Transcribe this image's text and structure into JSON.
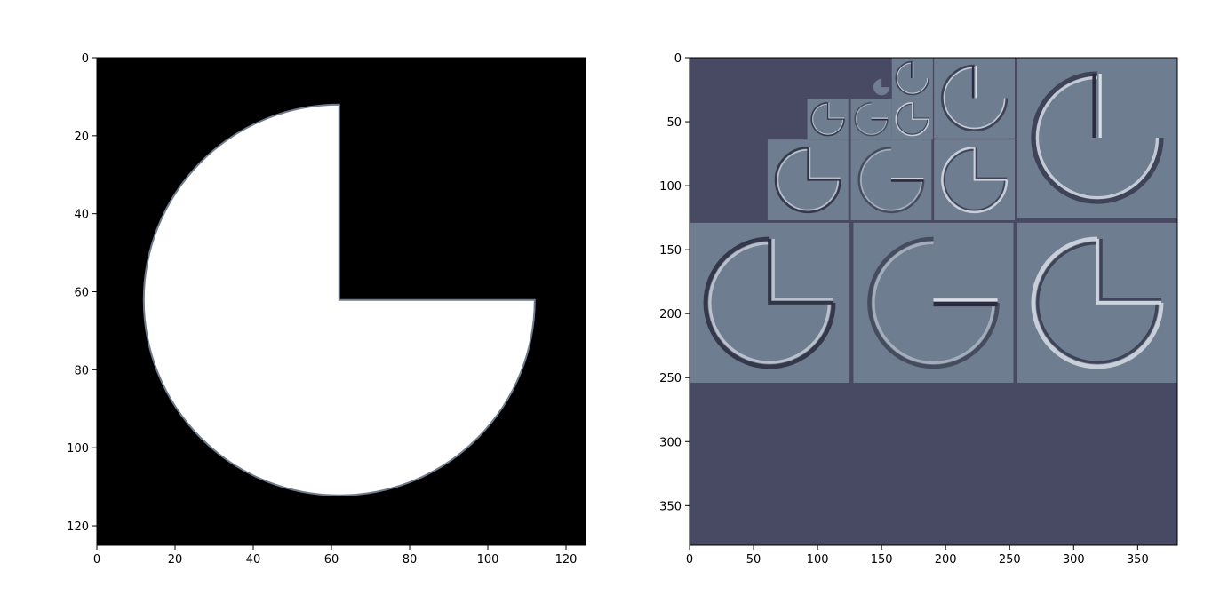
{
  "colors": {
    "background": "#ffffff",
    "shape_fill": "#ffffff",
    "image_background": "#000000",
    "edge_gray": "#6f7b8c",
    "pyramid_background": "#484962",
    "tile_fill": "#6f7d90",
    "edge_dark": "#2a2b3e",
    "edge_light": "#d8dde6",
    "spine": "#000000"
  },
  "chart_data": [
    {
      "type": "heatmap",
      "title": "",
      "xlabel": "",
      "ylabel": "",
      "colormap": "bone",
      "xlim": [
        0,
        125
      ],
      "ylim": [
        125,
        0
      ],
      "xticks": [
        0,
        20,
        40,
        60,
        80,
        100,
        120
      ],
      "yticks": [
        0,
        20,
        40,
        60,
        80,
        100,
        120
      ],
      "image": {
        "description_shape": "disk with upper-right quadrant removed",
        "center": [
          62,
          62
        ],
        "radius": 50,
        "missing_quadrant": "upper-right"
      }
    },
    {
      "type": "heatmap",
      "title": "",
      "xlabel": "",
      "ylabel": "",
      "colormap": "bone",
      "xlim": [
        0,
        381
      ],
      "ylim": [
        381,
        0
      ],
      "xticks": [
        0,
        50,
        100,
        150,
        200,
        250,
        300,
        350
      ],
      "yticks": [
        0,
        50,
        100,
        150,
        200,
        250,
        300,
        350
      ],
      "tiles": [
        {
          "x": 0,
          "y": 129,
          "size": 125,
          "variant": "diag-left"
        },
        {
          "x": 128,
          "y": 129,
          "size": 125,
          "variant": "horizontal"
        },
        {
          "x": 256,
          "y": 129,
          "size": 125,
          "variant": "diag-right"
        },
        {
          "x": 256,
          "y": 0,
          "size": 125,
          "variant": "vertical"
        },
        {
          "x": 61,
          "y": 64,
          "size": 63,
          "variant": "diag-left"
        },
        {
          "x": 126,
          "y": 64,
          "size": 63,
          "variant": "horizontal"
        },
        {
          "x": 191,
          "y": 64,
          "size": 63,
          "variant": "diag-right"
        },
        {
          "x": 191,
          "y": 0,
          "size": 63,
          "variant": "vertical"
        },
        {
          "x": 92,
          "y": 32,
          "size": 32,
          "variant": "diag-left"
        },
        {
          "x": 126,
          "y": 32,
          "size": 32,
          "variant": "horizontal"
        },
        {
          "x": 158,
          "y": 32,
          "size": 32,
          "variant": "diag-right"
        },
        {
          "x": 158,
          "y": 0,
          "size": 32,
          "variant": "vertical"
        },
        {
          "x": 142,
          "y": 15,
          "size": 16,
          "variant": "lowpass"
        }
      ]
    }
  ]
}
